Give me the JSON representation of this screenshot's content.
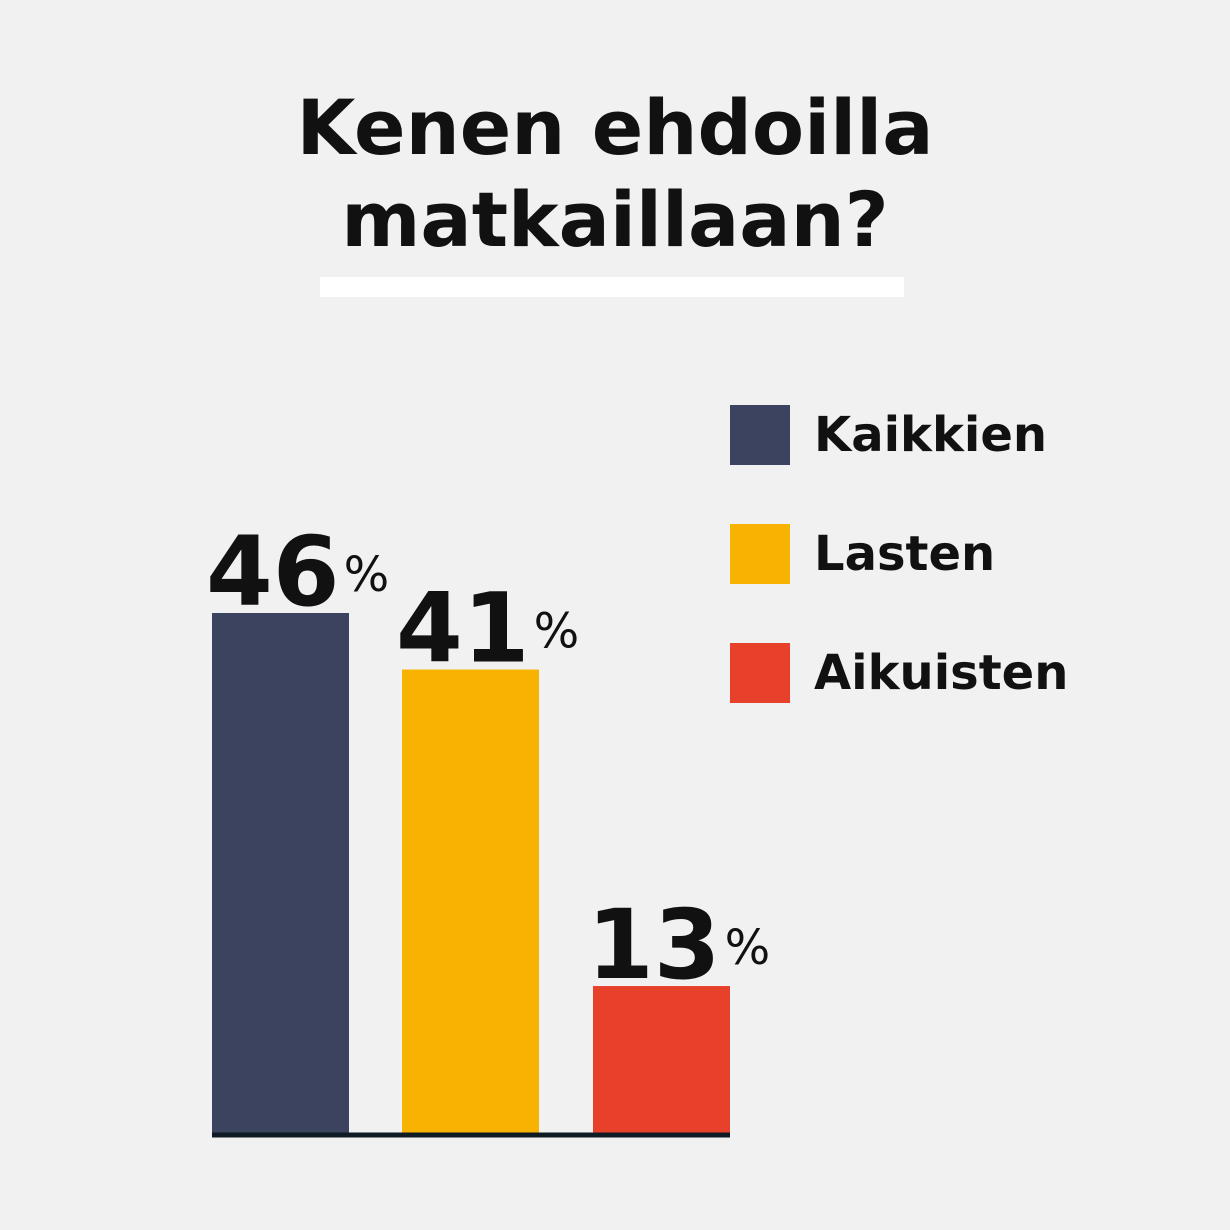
{
  "chart_data": {
    "type": "bar",
    "title_lines": [
      "Kenen ehdoilla",
      "matkaillaan?"
    ],
    "categories": [
      "Kaikkien",
      "Lasten",
      "Aikuisten"
    ],
    "values": [
      46,
      41,
      13
    ],
    "unit": "%",
    "colors": [
      "#3c435f",
      "#f7b202",
      "#e8412b"
    ],
    "ylim": [
      0,
      46
    ],
    "grid": false,
    "legend": {
      "placement": "right",
      "entries": [
        {
          "label": "Kaikkien",
          "color": "#3c435f"
        },
        {
          "label": "Lasten",
          "color": "#f7b202"
        },
        {
          "label": "Aikuisten",
          "color": "#e8412b"
        }
      ]
    }
  }
}
